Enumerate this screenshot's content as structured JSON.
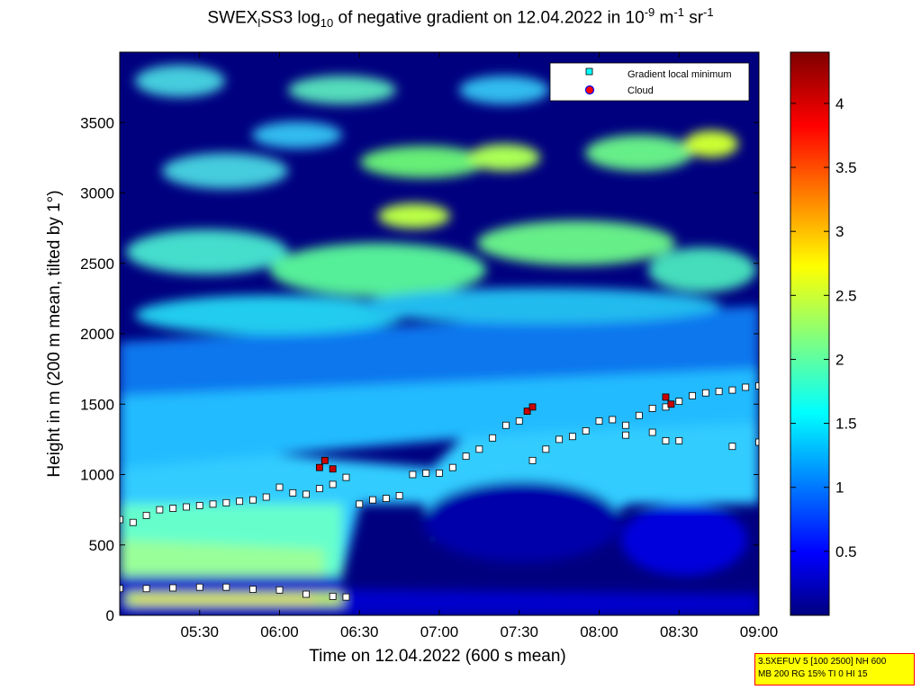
{
  "title": {
    "prefix": "SWEX",
    "sub1": "l",
    "mid": "SS3 log",
    "sub2": "10",
    "text": " of negative gradient on 12.04.2022 in 10",
    "exp1": "-9",
    "unit1": " m",
    "exp2": "-1",
    "unit2": " sr",
    "exp3": "-1"
  },
  "info_box": {
    "line1": "3.5XEFUV 5 [100 2500] NH 600",
    "line2": "MB 200 RG 15% TI 0 HI 15"
  },
  "colors": {
    "background_field": "#00007f",
    "gradient_min_marker": "#00ffff",
    "cloud_marker": "#ff0000",
    "cloud_edge": "#0000ff"
  },
  "chart_data": {
    "type": "heatmap",
    "title": "SWEXlSS3 log10 of negative gradient on 12.04.2022 in 10-9 m-1 sr-1",
    "xlabel": "Time on 12.04.2022 (600 s mean)",
    "ylabel": "Height in m (200 m mean, tilted by 1°)",
    "x_ticks": [
      "05:30",
      "06:00",
      "06:30",
      "07:00",
      "07:30",
      "08:00",
      "08:30",
      "09:00"
    ],
    "y_ticks": [
      0,
      500,
      1000,
      1500,
      2000,
      2500,
      3000,
      3500
    ],
    "xlim": [
      "05:00",
      "09:00"
    ],
    "ylim": [
      0,
      4000
    ],
    "colorbar": {
      "ticks": [
        0.5,
        1,
        1.5,
        2,
        2.5,
        3,
        3.5,
        4
      ],
      "range": [
        0,
        4.4
      ],
      "colormap": "jet"
    },
    "legend": {
      "placement": "top-right",
      "entries": [
        {
          "label": "Gradient local minimum",
          "marker": "square",
          "color": "#00ffff"
        },
        {
          "label": "Cloud",
          "marker": "circle",
          "color": "#ff0000"
        }
      ]
    },
    "series": [
      {
        "marker": "gradient-local-minimum",
        "points": [
          {
            "t": "05:00",
            "h": 680
          },
          {
            "t": "05:05",
            "h": 660
          },
          {
            "t": "05:10",
            "h": 710
          },
          {
            "t": "05:15",
            "h": 750
          },
          {
            "t": "05:20",
            "h": 760
          },
          {
            "t": "05:25",
            "h": 770
          },
          {
            "t": "05:30",
            "h": 780
          },
          {
            "t": "05:35",
            "h": 790
          },
          {
            "t": "05:40",
            "h": 800
          },
          {
            "t": "05:45",
            "h": 810
          },
          {
            "t": "05:50",
            "h": 820
          },
          {
            "t": "05:55",
            "h": 840
          },
          {
            "t": "06:00",
            "h": 910
          },
          {
            "t": "06:05",
            "h": 870
          },
          {
            "t": "06:10",
            "h": 860
          },
          {
            "t": "06:15",
            "h": 900
          },
          {
            "t": "06:20",
            "h": 930
          },
          {
            "t": "06:25",
            "h": 980
          },
          {
            "t": "06:30",
            "h": 790
          },
          {
            "t": "06:35",
            "h": 820
          },
          {
            "t": "06:40",
            "h": 830
          },
          {
            "t": "06:45",
            "h": 850
          },
          {
            "t": "06:50",
            "h": 1000
          },
          {
            "t": "06:55",
            "h": 1010
          },
          {
            "t": "07:00",
            "h": 1010
          },
          {
            "t": "07:05",
            "h": 1050
          },
          {
            "t": "07:10",
            "h": 1130
          },
          {
            "t": "07:15",
            "h": 1180
          },
          {
            "t": "07:20",
            "h": 1260
          },
          {
            "t": "07:25",
            "h": 1350
          },
          {
            "t": "07:30",
            "h": 1380
          },
          {
            "t": "07:35",
            "h": 1100
          },
          {
            "t": "07:40",
            "h": 1180
          },
          {
            "t": "07:45",
            "h": 1250
          },
          {
            "t": "07:50",
            "h": 1270
          },
          {
            "t": "07:55",
            "h": 1310
          },
          {
            "t": "08:00",
            "h": 1380
          },
          {
            "t": "08:05",
            "h": 1390
          },
          {
            "t": "08:10",
            "h": 1350
          },
          {
            "t": "08:15",
            "h": 1420
          },
          {
            "t": "08:20",
            "h": 1470
          },
          {
            "t": "08:25",
            "h": 1480
          },
          {
            "t": "08:30",
            "h": 1520
          },
          {
            "t": "08:35",
            "h": 1560
          },
          {
            "t": "08:40",
            "h": 1580
          },
          {
            "t": "08:45",
            "h": 1590
          },
          {
            "t": "08:50",
            "h": 1600
          },
          {
            "t": "08:55",
            "h": 1620
          },
          {
            "t": "09:00",
            "h": 1630
          }
        ]
      },
      {
        "marker": "gradient-local-minimum",
        "points": [
          {
            "t": "05:00",
            "h": 190
          },
          {
            "t": "05:10",
            "h": 190
          },
          {
            "t": "05:20",
            "h": 195
          },
          {
            "t": "05:30",
            "h": 200
          },
          {
            "t": "05:40",
            "h": 200
          },
          {
            "t": "05:50",
            "h": 185
          },
          {
            "t": "06:00",
            "h": 180
          },
          {
            "t": "06:10",
            "h": 150
          },
          {
            "t": "06:20",
            "h": 135
          },
          {
            "t": "06:25",
            "h": 130
          }
        ]
      },
      {
        "marker": "gradient-local-minimum",
        "points": [
          {
            "t": "08:10",
            "h": 1280
          },
          {
            "t": "08:20",
            "h": 1300
          },
          {
            "t": "08:25",
            "h": 1240
          },
          {
            "t": "08:30",
            "h": 1240
          },
          {
            "t": "08:50",
            "h": 1200
          },
          {
            "t": "09:00",
            "h": 1230
          }
        ]
      },
      {
        "marker": "cloud",
        "points": [
          {
            "t": "06:15",
            "h": 1050
          },
          {
            "t": "06:17",
            "h": 1100
          },
          {
            "t": "06:20",
            "h": 1040
          },
          {
            "t": "07:33",
            "h": 1450
          },
          {
            "t": "07:35",
            "h": 1480
          },
          {
            "t": "08:25",
            "h": 1550
          },
          {
            "t": "08:27",
            "h": 1500
          }
        ]
      }
    ]
  }
}
